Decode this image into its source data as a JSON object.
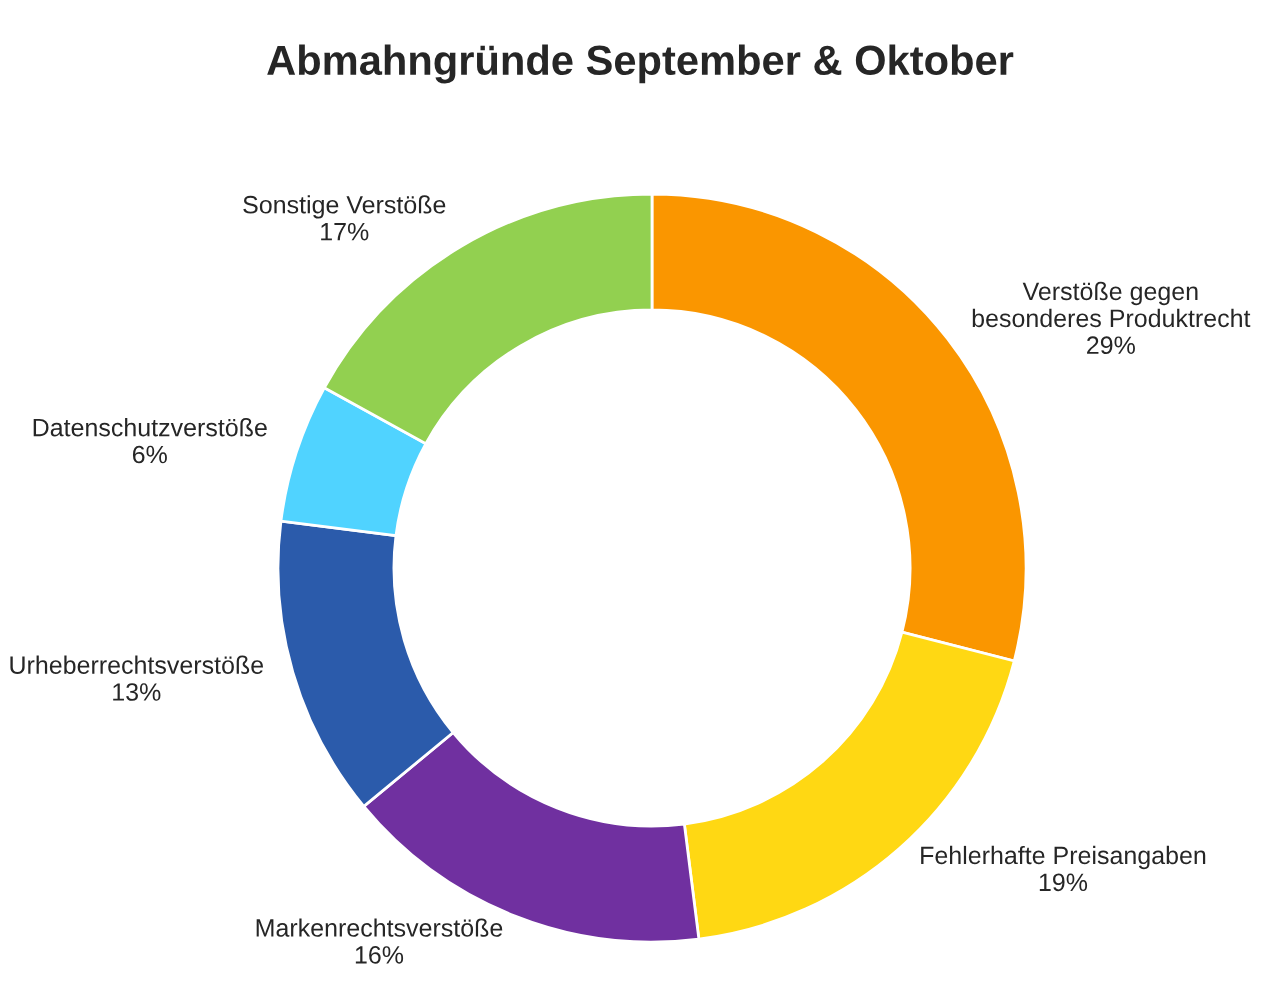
{
  "chart_data": {
    "type": "donut",
    "title": "Abmahngründe September & Oktober",
    "categories": [
      "Verstöße gegen besonderes Produktrecht",
      "Fehlerhafte Preisangaben",
      "Markenrechtsverstöße",
      "Urheberrechtsverstöße",
      "Datenschutzverstöße",
      "Sonstige Verstöße"
    ],
    "values": [
      29,
      19,
      16,
      13,
      6,
      17
    ],
    "value_labels": [
      "29%",
      "19%",
      "16%",
      "13%",
      "6%",
      "17%"
    ],
    "colors": [
      "#fa9600",
      "#ffd813",
      "#7030a0",
      "#2b5bab",
      "#50d3ff",
      "#92d050"
    ],
    "legend": false
  }
}
